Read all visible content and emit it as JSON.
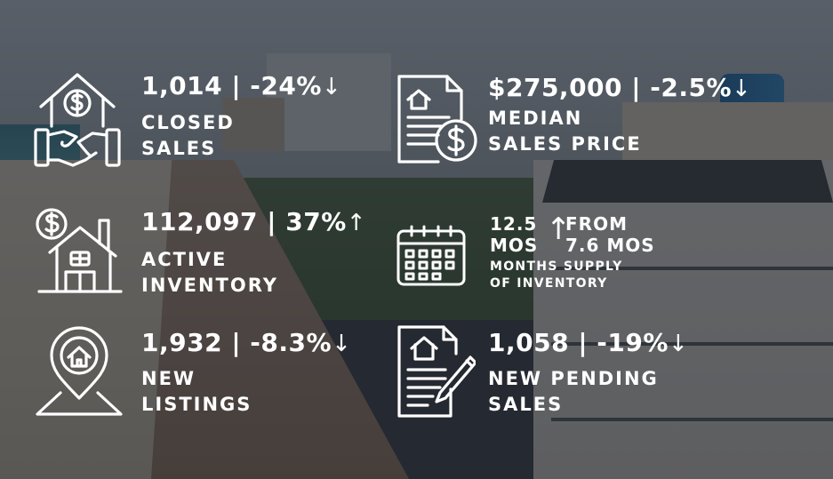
{
  "stats": {
    "closed_sales": {
      "value": "1,014 | -24%",
      "arrow": "↓",
      "label_line1": "CLOSED",
      "label_line2": "SALES",
      "icon": "house-handshake-icon"
    },
    "median_price": {
      "value": "$275,000 | -2.5%",
      "arrow": "↓",
      "label_line1": "MEDIAN",
      "label_line2": "SALES PRICE",
      "icon": "document-dollar-icon"
    },
    "active_inventory": {
      "value": "112,097 | 37%",
      "arrow": "↑",
      "label_line1": "ACTIVE",
      "label_line2": "INVENTORY",
      "icon": "house-dollar-icon"
    },
    "months_supply": {
      "value_line1": "12.5",
      "value_line2": "MOS",
      "arrow": "↑",
      "from_line1": "FROM",
      "from_line2": "7.6 MOS",
      "label_line1": "MONTHS SUPPLY",
      "label_line2": "OF INVENTORY",
      "icon": "calendar-icon"
    },
    "new_listings": {
      "value": "1,932 | -8.3%",
      "arrow": "↓",
      "label_line1": "NEW",
      "label_line2": "LISTINGS",
      "icon": "location-house-icon"
    },
    "pending_sales": {
      "value": "1,058 | -19%",
      "arrow": "↓",
      "label_line1": "NEW PENDING",
      "label_line2": "SALES",
      "icon": "contract-pen-icon"
    }
  },
  "colors": {
    "text": "#ffffff",
    "overlay": "rgba(25,30,37,0.64)"
  }
}
